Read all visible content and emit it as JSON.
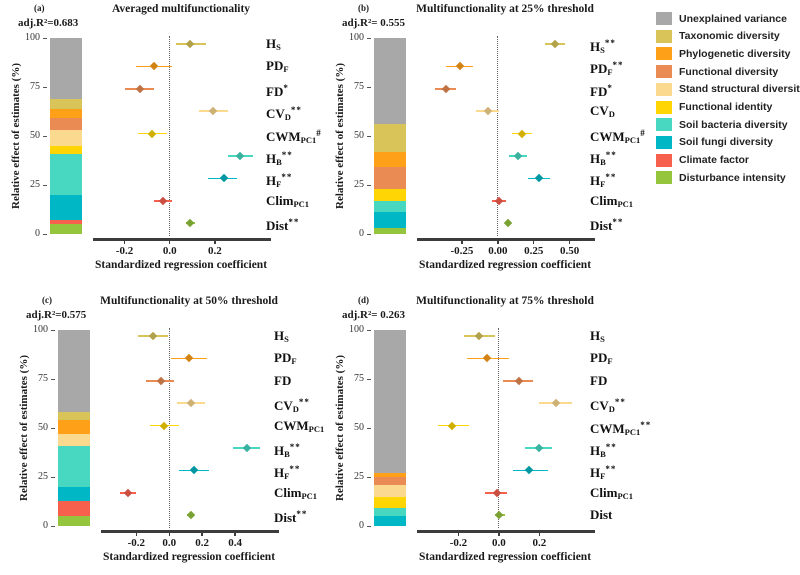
{
  "shared": {
    "y_axis_label": "Relative effect of estimates (%)",
    "x_axis_label": "Standardized regression coefficient",
    "y_ticks": [
      {
        "v": 0,
        "label": "0"
      },
      {
        "v": 25,
        "label": "25"
      },
      {
        "v": 50,
        "label": "50"
      },
      {
        "v": 75,
        "label": "75"
      },
      {
        "v": 100,
        "label": "100"
      }
    ]
  },
  "legend": {
    "items": [
      {
        "key": "unexplained",
        "label": "Unexplained variance",
        "color": "#a8a8a8"
      },
      {
        "key": "taxonomic",
        "label": "Taxonomic diversity",
        "color": "#d8c458"
      },
      {
        "key": "phylogenetic",
        "label": "Phylogenetic diversity",
        "color": "#ffa118"
      },
      {
        "key": "functional_div",
        "label": "Functional diversity",
        "color": "#e98b52"
      },
      {
        "key": "stand",
        "label": "Stand structural diversity",
        "color": "#fbd98f"
      },
      {
        "key": "identity",
        "label": "Functional identity",
        "color": "#ffd503"
      },
      {
        "key": "bacteria",
        "label": "Soil bacteria diversity",
        "color": "#48d8c2"
      },
      {
        "key": "fungi",
        "label": "Soil fungi diversity",
        "color": "#00b8c5"
      },
      {
        "key": "climate",
        "label": "Climate factor",
        "color": "#f8604e"
      },
      {
        "key": "disturbance",
        "label": "Disturbance intensity",
        "color": "#95c53d"
      }
    ]
  },
  "chart_data": [
    {
      "id": "a",
      "panel_letter": "(a)",
      "title": "Averaged multifunctionality",
      "adj_r2": "adj.R²=0.683",
      "type": "bar+forest",
      "x_range": [
        -0.3,
        0.4
      ],
      "x_ticks": [
        {
          "v": -0.2,
          "label": "-0.2"
        },
        {
          "v": 0.0,
          "label": "0.0"
        },
        {
          "v": 0.2,
          "label": "0.2"
        }
      ],
      "stack_bottom_to_top": [
        {
          "key": "disturbance",
          "value": 5
        },
        {
          "key": "climate",
          "value": 2
        },
        {
          "key": "fungi",
          "value": 13
        },
        {
          "key": "bacteria",
          "value": 21
        },
        {
          "key": "identity",
          "value": 4
        },
        {
          "key": "stand",
          "value": 8
        },
        {
          "key": "functional_div",
          "value": 6
        },
        {
          "key": "phylogenetic",
          "value": 5
        },
        {
          "key": "taxonomic",
          "value": 5
        },
        {
          "key": "unexplained",
          "value": 31
        }
      ],
      "points": [
        {
          "base": "H",
          "sub": "S",
          "sig": "",
          "key": "taxonomic",
          "est": 0.09,
          "lo": 0.03,
          "hi": 0.16
        },
        {
          "base": "PD",
          "sub": "F",
          "sig": "",
          "key": "phylogenetic",
          "est": -0.07,
          "lo": -0.15,
          "hi": 0.01
        },
        {
          "base": "FD",
          "sub": "",
          "sig": "*",
          "key": "functional_div",
          "est": -0.13,
          "lo": -0.2,
          "hi": -0.07
        },
        {
          "base": "CV",
          "sub": "D",
          "sig": "**",
          "key": "stand",
          "est": 0.19,
          "lo": 0.13,
          "hi": 0.26
        },
        {
          "base": "CWM",
          "sub": "PC1",
          "sig": "#",
          "key": "identity",
          "est": -0.08,
          "lo": -0.14,
          "hi": -0.01
        },
        {
          "base": "H",
          "sub": "B",
          "sig": "**",
          "key": "bacteria",
          "est": 0.31,
          "lo": 0.26,
          "hi": 0.37
        },
        {
          "base": "H",
          "sub": "F",
          "sig": "**",
          "key": "fungi",
          "est": 0.24,
          "lo": 0.17,
          "hi": 0.3
        },
        {
          "base": "Clim",
          "sub": "PC1",
          "sig": "",
          "key": "climate",
          "est": -0.03,
          "lo": -0.07,
          "hi": 0.01
        },
        {
          "base": "Dist",
          "sub": "",
          "sig": "**",
          "key": "disturbance",
          "est": 0.09,
          "lo": 0.07,
          "hi": 0.11
        }
      ]
    },
    {
      "id": "b",
      "panel_letter": "(b)",
      "title": "Multifunctionality at 25% threshold",
      "adj_r2": "adj.R²= 0.555",
      "type": "bar+forest",
      "x_range": [
        -0.5,
        0.6
      ],
      "x_ticks": [
        {
          "v": -0.25,
          "label": "-0.25"
        },
        {
          "v": 0.0,
          "label": "0.00"
        },
        {
          "v": 0.25,
          "label": "0.25"
        },
        {
          "v": 0.5,
          "label": "0.50"
        }
      ],
      "stack_bottom_to_top": [
        {
          "key": "disturbance",
          "value": 3
        },
        {
          "key": "fungi",
          "value": 8
        },
        {
          "key": "bacteria",
          "value": 6
        },
        {
          "key": "identity",
          "value": 6
        },
        {
          "key": "functional_div",
          "value": 11
        },
        {
          "key": "phylogenetic",
          "value": 8
        },
        {
          "key": "taxonomic",
          "value": 14
        },
        {
          "key": "unexplained",
          "value": 44
        }
      ],
      "points": [
        {
          "base": "H",
          "sub": "S",
          "sig": "**",
          "key": "taxonomic",
          "est": 0.4,
          "lo": 0.33,
          "hi": 0.47
        },
        {
          "base": "PD",
          "sub": "F",
          "sig": "**",
          "key": "phylogenetic",
          "est": -0.26,
          "lo": -0.36,
          "hi": -0.17
        },
        {
          "base": "FD",
          "sub": "",
          "sig": "*",
          "key": "functional_div",
          "est": -0.36,
          "lo": -0.44,
          "hi": -0.29
        },
        {
          "base": "CV",
          "sub": "D",
          "sig": "",
          "key": "stand",
          "est": -0.07,
          "lo": -0.15,
          "hi": 0.01
        },
        {
          "base": "CWM",
          "sub": "PC1",
          "sig": "#",
          "key": "identity",
          "est": 0.17,
          "lo": 0.1,
          "hi": 0.24
        },
        {
          "base": "H",
          "sub": "B",
          "sig": "**",
          "key": "bacteria",
          "est": 0.14,
          "lo": 0.08,
          "hi": 0.2
        },
        {
          "base": "H",
          "sub": "F",
          "sig": "**",
          "key": "fungi",
          "est": 0.29,
          "lo": 0.21,
          "hi": 0.36
        },
        {
          "base": "Clim",
          "sub": "PC1",
          "sig": "",
          "key": "climate",
          "est": 0.01,
          "lo": -0.04,
          "hi": 0.06
        },
        {
          "base": "Dist",
          "sub": "",
          "sig": "**",
          "key": "disturbance",
          "est": 0.07,
          "lo": 0.05,
          "hi": 0.09
        }
      ]
    },
    {
      "id": "c",
      "panel_letter": "(c)",
      "title": "Multifunctionality at 50% threshold",
      "adj_r2": "adj.R²=0.575",
      "type": "bar+forest",
      "x_range": [
        -0.36,
        0.6
      ],
      "x_ticks": [
        {
          "v": -0.2,
          "label": "-0.2"
        },
        {
          "v": 0.0,
          "label": "0.0"
        },
        {
          "v": 0.2,
          "label": "0.2"
        },
        {
          "v": 0.4,
          "label": "0.4"
        }
      ],
      "stack_bottom_to_top": [
        {
          "key": "disturbance",
          "value": 5
        },
        {
          "key": "climate",
          "value": 8
        },
        {
          "key": "fungi",
          "value": 7
        },
        {
          "key": "bacteria",
          "value": 21
        },
        {
          "key": "stand",
          "value": 6
        },
        {
          "key": "phylogenetic",
          "value": 7
        },
        {
          "key": "taxonomic",
          "value": 4
        },
        {
          "key": "unexplained",
          "value": 42
        }
      ],
      "points": [
        {
          "base": "H",
          "sub": "S",
          "sig": "",
          "key": "taxonomic",
          "est": -0.1,
          "lo": -0.19,
          "hi": -0.01
        },
        {
          "base": "PD",
          "sub": "F",
          "sig": "",
          "key": "phylogenetic",
          "est": 0.12,
          "lo": 0.01,
          "hi": 0.23
        },
        {
          "base": "FD",
          "sub": "",
          "sig": "",
          "key": "functional_div",
          "est": -0.05,
          "lo": -0.14,
          "hi": 0.03
        },
        {
          "base": "CV",
          "sub": "D",
          "sig": "**",
          "key": "stand",
          "est": 0.13,
          "lo": 0.05,
          "hi": 0.22
        },
        {
          "base": "CWM",
          "sub": "PC1",
          "sig": "",
          "key": "identity",
          "est": -0.03,
          "lo": -0.12,
          "hi": 0.06
        },
        {
          "base": "H",
          "sub": "B",
          "sig": "**",
          "key": "bacteria",
          "est": 0.47,
          "lo": 0.39,
          "hi": 0.55
        },
        {
          "base": "H",
          "sub": "F",
          "sig": "**",
          "key": "fungi",
          "est": 0.15,
          "lo": 0.06,
          "hi": 0.24
        },
        {
          "base": "Clim",
          "sub": "PC1",
          "sig": "",
          "key": "climate",
          "est": -0.25,
          "lo": -0.3,
          "hi": -0.2
        },
        {
          "base": "Dist",
          "sub": "",
          "sig": "**",
          "key": "disturbance",
          "est": 0.13,
          "lo": 0.11,
          "hi": 0.15
        }
      ]
    },
    {
      "id": "d",
      "panel_letter": "(d)",
      "title": "Multifunctionality at 75% threshold",
      "adj_r2": "adj.R²= 0.263",
      "type": "bar+forest",
      "x_range": [
        -0.36,
        0.42
      ],
      "x_ticks": [
        {
          "v": -0.2,
          "label": "-0.2"
        },
        {
          "v": 0.0,
          "label": "0.0"
        },
        {
          "v": 0.2,
          "label": "0.2"
        }
      ],
      "stack_bottom_to_top": [
        {
          "key": "fungi",
          "value": 5
        },
        {
          "key": "bacteria",
          "value": 4
        },
        {
          "key": "identity",
          "value": 6
        },
        {
          "key": "stand",
          "value": 6
        },
        {
          "key": "functional_div",
          "value": 4
        },
        {
          "key": "phylogenetic",
          "value": 2
        },
        {
          "key": "unexplained",
          "value": 73
        }
      ],
      "points": [
        {
          "base": "H",
          "sub": "S",
          "sig": "",
          "key": "taxonomic",
          "est": -0.1,
          "lo": -0.17,
          "hi": -0.02
        },
        {
          "base": "PD",
          "sub": "F",
          "sig": "",
          "key": "phylogenetic",
          "est": -0.06,
          "lo": -0.16,
          "hi": 0.05
        },
        {
          "base": "FD",
          "sub": "",
          "sig": "",
          "key": "functional_div",
          "est": 0.1,
          "lo": 0.02,
          "hi": 0.17
        },
        {
          "base": "CV",
          "sub": "D",
          "sig": "**",
          "key": "stand",
          "est": 0.28,
          "lo": 0.2,
          "hi": 0.36
        },
        {
          "base": "CWM",
          "sub": "PC1",
          "sig": "**",
          "key": "identity",
          "est": -0.23,
          "lo": -0.3,
          "hi": -0.15
        },
        {
          "base": "H",
          "sub": "B",
          "sig": "**",
          "key": "bacteria",
          "est": 0.2,
          "lo": 0.13,
          "hi": 0.26
        },
        {
          "base": "H",
          "sub": "F",
          "sig": "**",
          "key": "fungi",
          "est": 0.15,
          "lo": 0.07,
          "hi": 0.24
        },
        {
          "base": "Clim",
          "sub": "PC1",
          "sig": "",
          "key": "climate",
          "est": -0.01,
          "lo": -0.07,
          "hi": 0.04
        },
        {
          "base": "Dist",
          "sub": "",
          "sig": "",
          "key": "disturbance",
          "est": 0.0,
          "lo": -0.02,
          "hi": 0.03
        }
      ]
    }
  ]
}
